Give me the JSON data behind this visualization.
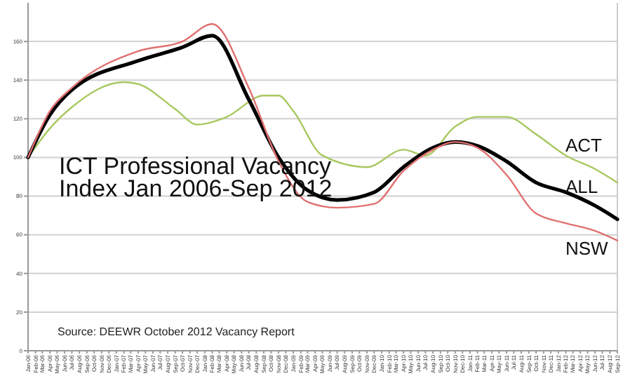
{
  "chart_data": {
    "type": "line",
    "title": "ICT Professional Vacancy\nIndex Jan 2006-Sep 2012",
    "annotations": [
      "Source: DEEWR October 2012 Vacancy Report"
    ],
    "xlim": [
      "2006-01",
      "2012-09"
    ],
    "xticks": [
      {
        "value": "2006-01",
        "label": "Jan-06"
      },
      {
        "value": "2006-02",
        "label": "Feb-06"
      },
      {
        "value": "2006-03",
        "label": "Mar-06"
      },
      {
        "value": "2006-04",
        "label": "Apr-06"
      },
      {
        "value": "2006-05",
        "label": "May-06"
      },
      {
        "value": "2006-06",
        "label": "Jun-06"
      },
      {
        "value": "2006-07",
        "label": "Jul-06"
      },
      {
        "value": "2006-08",
        "label": "Aug-06"
      },
      {
        "value": "2006-09",
        "label": "Sep-06"
      },
      {
        "value": "2006-10",
        "label": "Oct-06"
      },
      {
        "value": "2006-11",
        "label": "Nov-06"
      },
      {
        "value": "2006-12",
        "label": "Dec-06"
      },
      {
        "value": "2007-01",
        "label": "Jan-07"
      },
      {
        "value": "2007-02",
        "label": "Feb-07"
      },
      {
        "value": "2007-03",
        "label": "Mar-07"
      },
      {
        "value": "2007-04",
        "label": "Apr-07"
      },
      {
        "value": "2007-05",
        "label": "May-07"
      },
      {
        "value": "2007-06",
        "label": "Jun-07"
      },
      {
        "value": "2007-07",
        "label": "Jul-07"
      },
      {
        "value": "2007-08",
        "label": "Aug-07"
      },
      {
        "value": "2007-09",
        "label": "Sep-07"
      },
      {
        "value": "2007-10",
        "label": "Oct-07"
      },
      {
        "value": "2007-11",
        "label": "Nov-07"
      },
      {
        "value": "2007-12",
        "label": "Dec-07"
      },
      {
        "value": "2008-01",
        "label": "Jan-08"
      },
      {
        "value": "2008-02",
        "label": "Feb-08"
      },
      {
        "value": "2008-03",
        "label": "Mar-08"
      },
      {
        "value": "2008-04",
        "label": "Apr-08"
      },
      {
        "value": "2008-05",
        "label": "May-08"
      },
      {
        "value": "2008-06",
        "label": "Jun-08"
      },
      {
        "value": "2008-07",
        "label": "Jul-08"
      },
      {
        "value": "2008-08",
        "label": "Aug-08"
      },
      {
        "value": "2008-09",
        "label": "Sep-08"
      },
      {
        "value": "2008-10",
        "label": "Oct-08"
      },
      {
        "value": "2008-11",
        "label": "Nov-08"
      },
      {
        "value": "2008-12",
        "label": "Dec-08"
      },
      {
        "value": "2009-01",
        "label": "Jan-09"
      },
      {
        "value": "2009-02",
        "label": "Feb-09"
      },
      {
        "value": "2009-03",
        "label": "Mar-09"
      },
      {
        "value": "2009-04",
        "label": "Apr-09"
      },
      {
        "value": "2009-05",
        "label": "May-09"
      },
      {
        "value": "2009-06",
        "label": "Jun-09"
      },
      {
        "value": "2009-07",
        "label": "Jul-09"
      },
      {
        "value": "2009-08",
        "label": "Aug-09"
      },
      {
        "value": "2009-09",
        "label": "Sep-09"
      },
      {
        "value": "2009-10",
        "label": "Oct-09"
      },
      {
        "value": "2009-11",
        "label": "Nov-09"
      },
      {
        "value": "2009-12",
        "label": "Dec-09"
      },
      {
        "value": "2010-01",
        "label": "Jan-10"
      },
      {
        "value": "2010-02",
        "label": "Feb-10"
      },
      {
        "value": "2010-03",
        "label": "Mar-10"
      },
      {
        "value": "2010-04",
        "label": "Apr-10"
      },
      {
        "value": "2010-05",
        "label": "May-10"
      },
      {
        "value": "2010-06",
        "label": "Jun-10"
      },
      {
        "value": "2010-07",
        "label": "Jul-10"
      },
      {
        "value": "2010-08",
        "label": "Aug-10"
      },
      {
        "value": "2010-09",
        "label": "Sep-10"
      },
      {
        "value": "2010-10",
        "label": "Oct-10"
      },
      {
        "value": "2010-11",
        "label": "Nov-10"
      },
      {
        "value": "2010-12",
        "label": "Dec-10"
      },
      {
        "value": "2011-01",
        "label": "Jan-11"
      },
      {
        "value": "2011-02",
        "label": "Feb-11"
      },
      {
        "value": "2011-03",
        "label": "Mar-11"
      },
      {
        "value": "2011-04",
        "label": "Apr-11"
      },
      {
        "value": "2011-05",
        "label": "May-11"
      },
      {
        "value": "2011-06",
        "label": "Jun-11"
      },
      {
        "value": "2011-07",
        "label": "Jul-11"
      },
      {
        "value": "2011-08",
        "label": "Aug-11"
      },
      {
        "value": "2011-09",
        "label": "Sep-11"
      },
      {
        "value": "2011-10",
        "label": "Oct-11"
      },
      {
        "value": "2011-11",
        "label": "Nov-11"
      },
      {
        "value": "2011-12",
        "label": "Dec-11"
      },
      {
        "value": "2012-01",
        "label": "Jan-12"
      },
      {
        "value": "2012-02",
        "label": "Feb-12"
      },
      {
        "value": "2012-03",
        "label": "Mar-12"
      },
      {
        "value": "2012-04",
        "label": "Apr-12"
      },
      {
        "value": "2012-05",
        "label": "May-12"
      },
      {
        "value": "2012-06",
        "label": "Jun-12"
      },
      {
        "value": "2012-07",
        "label": "Jul-12"
      },
      {
        "value": "2012-08",
        "label": "Aug-12"
      },
      {
        "value": "2012-09",
        "label": "Sep-12"
      }
    ],
    "ylim": [
      0,
      180
    ],
    "yticks": [
      0,
      20,
      40,
      60,
      80,
      100,
      120,
      140,
      160
    ],
    "grid": "y",
    "legend": false,
    "marker": "none",
    "line_style": "solid",
    "series": [
      {
        "name": "ACT",
        "color": "#a8c860",
        "x": [
          "2006-01",
          "2006-04",
          "2006-07",
          "2007-02",
          "2007-04",
          "2007-09",
          "2007-12",
          "2008-04",
          "2008-09",
          "2008-11",
          "2009-01",
          "2009-05",
          "2009-11",
          "2010-04",
          "2010-07",
          "2010-11",
          "2011-02",
          "2011-06",
          "2011-10",
          "2012-02",
          "2012-06",
          "2012-09"
        ],
        "values": [
          100,
          115,
          126,
          139,
          138,
          125,
          117,
          121,
          132,
          132,
          124,
          101,
          95,
          104,
          101,
          116,
          121,
          121,
          112,
          101,
          94,
          87
        ]
      },
      {
        "name": "ALL",
        "color": "#000000",
        "x": [
          "2006-01",
          "2006-04",
          "2006-07",
          "2007-04",
          "2007-10",
          "2008-02",
          "2008-07",
          "2008-11",
          "2009-03",
          "2009-07",
          "2009-12",
          "2010-04",
          "2010-08",
          "2010-11",
          "2011-02",
          "2011-06",
          "2011-10",
          "2012-02",
          "2012-06",
          "2012-09"
        ],
        "values": [
          100,
          122,
          135,
          150,
          157,
          163,
          130,
          100,
          83,
          78,
          82,
          95,
          105,
          108,
          106,
          98,
          87,
          82,
          75,
          68
        ]
      },
      {
        "name": "NSW",
        "color": "#e07070",
        "x": [
          "2006-01",
          "2006-04",
          "2006-07",
          "2007-04",
          "2007-10",
          "2008-02",
          "2008-07",
          "2008-11",
          "2009-03",
          "2009-07",
          "2009-12",
          "2010-04",
          "2010-08",
          "2010-11",
          "2011-02",
          "2011-06",
          "2011-10",
          "2012-02",
          "2012-06",
          "2012-09"
        ],
        "values": [
          100,
          124,
          136,
          155,
          160,
          169,
          136,
          98,
          77,
          74,
          76,
          93,
          104,
          108,
          105,
          91,
          71,
          66,
          62,
          57
        ]
      }
    ]
  }
}
